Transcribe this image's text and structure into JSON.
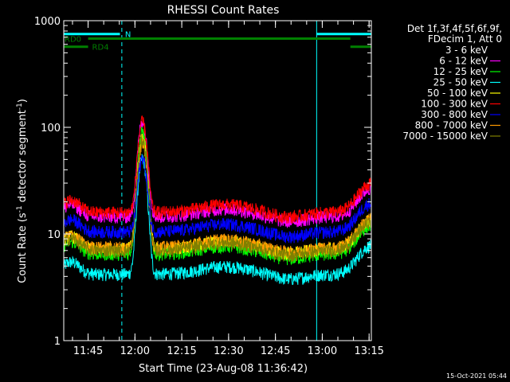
{
  "chart_data": {
    "type": "line",
    "title": "RHESSI Count Rates",
    "xlabel": "Start Time (23-Aug-08 11:36:42)",
    "ylabel_parts": [
      "Count Rate (s",
      "-1",
      " detector segment",
      "-1",
      ")"
    ],
    "yscale": "log",
    "ylim": [
      1,
      1000
    ],
    "xlim": [
      11.62,
      13.262
    ],
    "y_ticks": [
      {
        "value": 1,
        "label": "1"
      },
      {
        "value": 10,
        "label": "10"
      },
      {
        "value": 100,
        "label": "100"
      },
      {
        "value": 1000,
        "label": "1000"
      }
    ],
    "x_ticks": [
      {
        "value": 11.75,
        "label": "11:45"
      },
      {
        "value": 12.0,
        "label": "12:00"
      },
      {
        "value": 12.25,
        "label": "12:15"
      },
      {
        "value": 12.5,
        "label": "12:30"
      },
      {
        "value": 12.75,
        "label": "12:45"
      },
      {
        "value": 13.0,
        "label": "13:00"
      },
      {
        "value": 13.25,
        "label": "13:15"
      }
    ],
    "legend_header": [
      "Det 1f,3f,4f,5f,6f,9f,",
      "FDecim 1, Att 0"
    ],
    "legend_position": "right",
    "series": [
      {
        "name": "3 - 6 keV",
        "color": "#000000",
        "baseline": 7.0
      },
      {
        "name": "6 - 12 keV",
        "color": "#ff00ff",
        "baseline": 14.5
      },
      {
        "name": "12 - 25 keV",
        "color": "#00ff00",
        "baseline": 6.5
      },
      {
        "name": "25 - 50 keV",
        "color": "#00ffff",
        "baseline": 4.2
      },
      {
        "name": "50 - 100 keV",
        "color": "#ffff00",
        "baseline": 7.3
      },
      {
        "name": "100 - 300 keV",
        "color": "#ff0000",
        "baseline": 16.0
      },
      {
        "name": "300 - 800 keV",
        "color": "#0000ff",
        "baseline": 10.5
      },
      {
        "name": "800 - 7000 keV",
        "color": "#ff9900",
        "baseline": 7.5
      },
      {
        "name": "7000 - 15000 keV",
        "color": "#808000",
        "baseline": 7.0
      }
    ],
    "peak_time": 12.04,
    "peak_values": [
      108,
      112,
      90,
      50,
      80,
      110,
      50,
      70,
      75
    ],
    "vertical_lines": [
      {
        "x": 11.62,
        "style": "solid",
        "color": "#00ffff"
      },
      {
        "x": 11.93,
        "style": "dashed",
        "color": "#00ffff"
      },
      {
        "x": 12.97,
        "style": "solid",
        "color": "#00ffff"
      },
      {
        "x": 13.262,
        "style": "dashed",
        "color": "#00ffff"
      }
    ],
    "annotations": [
      {
        "label": "N",
        "color": "#00ffff",
        "segments": [
          [
            11.62,
            11.92
          ],
          [
            12.97,
            13.262
          ]
        ],
        "y_level": 750
      },
      {
        "label": "RD0",
        "color": "#008000",
        "segments": [
          [
            11.75,
            13.15
          ]
        ],
        "y_level": 680
      },
      {
        "label": "RD4",
        "color": "#008000",
        "segments": [
          [
            11.62,
            11.75
          ],
          [
            13.15,
            13.262
          ]
        ],
        "y_level": 570
      }
    ]
  },
  "footer": {
    "timestamp": "15-Oct-2021 05:44"
  }
}
